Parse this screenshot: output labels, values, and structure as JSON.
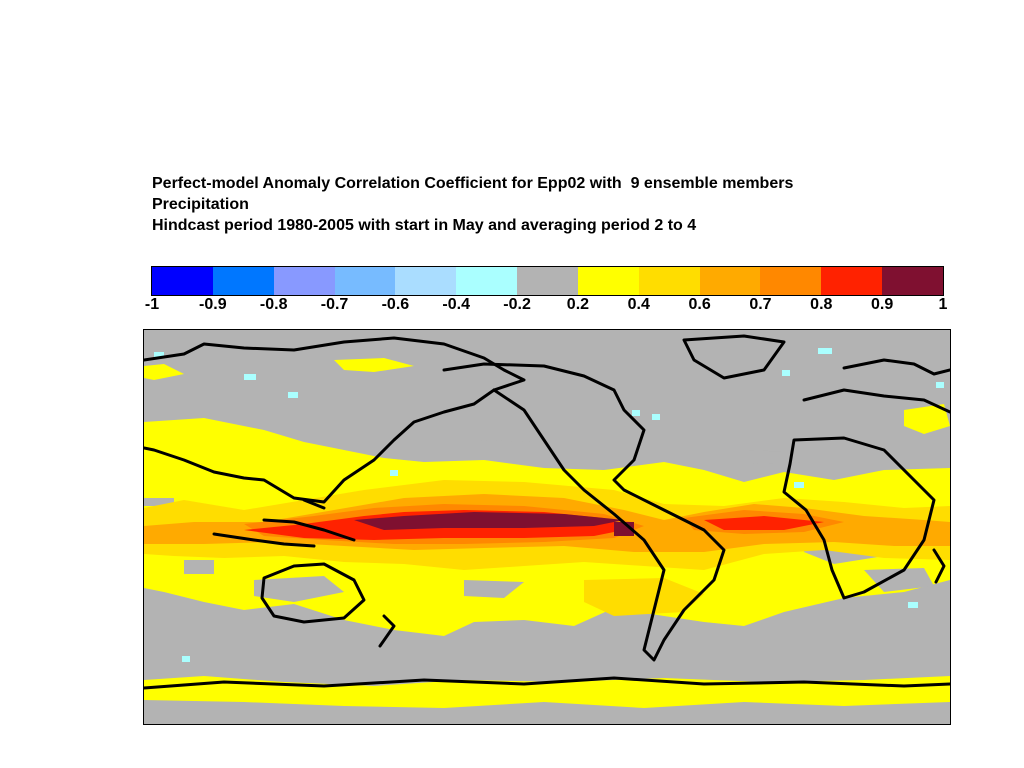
{
  "title": {
    "line1": "Perfect-model Anomaly Correlation Coefficient for Epp02 with  9 ensemble members",
    "line2": "Precipitation",
    "line3": "Hindcast period 1980-2005 with start in May and averaging period 2 to 4"
  },
  "colorbar": {
    "colors": [
      "#0000ff",
      "#0077ff",
      "#8899ff",
      "#77bbff",
      "#aaddff",
      "#aaffff",
      "#b3b3b3",
      "#ffff00",
      "#ffdd00",
      "#ffaa00",
      "#ff8800",
      "#ff2200",
      "#7f1030"
    ],
    "tick_labels": [
      "-1",
      "-0.9",
      "-0.8",
      "-0.7",
      "-0.6",
      "-0.4",
      "-0.2",
      "0.2",
      "0.4",
      "0.6",
      "0.7",
      "0.8",
      "0.9",
      "1"
    ]
  }
}
